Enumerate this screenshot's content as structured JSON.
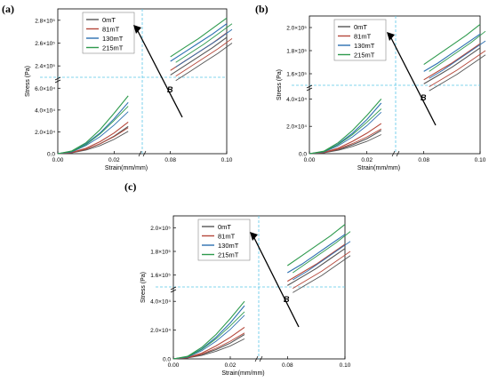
{
  "chart_data": [
    {
      "type": "line",
      "panel_label": "(a)",
      "xlabel": "Strain(mm/mm)",
      "ylabel": "Stress (Pa)",
      "x_ticks": [
        "0.00",
        "0.02",
        "0.08",
        "0.10"
      ],
      "y_ticks_lower": [
        "0.0",
        "2.0×10⁴",
        "4.0×10⁴",
        "6.0×10⁴"
      ],
      "y_ticks_upper": [
        "2.4×10⁵",
        "2.6×10⁵",
        "2.8×10⁵"
      ],
      "x_range_lower": [
        0,
        0.03
      ],
      "x_range_upper": [
        0.07,
        0.1
      ],
      "y_range_lower": [
        0,
        70000
      ],
      "y_range_upper": [
        220000,
        280000
      ],
      "legend_position": "top-left",
      "annotation": "B",
      "series": [
        {
          "name": "0mT",
          "color": "#555555",
          "x_low": [
            0.0,
            0.005,
            0.01,
            0.015,
            0.02,
            0.025
          ],
          "y_low": [
            0,
            1000,
            4000,
            9000,
            16000,
            25000
          ],
          "x_high": [
            0.08,
            0.085,
            0.09,
            0.095,
            0.1
          ],
          "y_high": [
            222000,
            230000,
            238000,
            246000,
            255000
          ]
        },
        {
          "name": "81mT",
          "color": "#b5473a",
          "x_low": [
            0.0,
            0.005,
            0.01,
            0.015,
            0.02,
            0.025
          ],
          "y_low": [
            0,
            1200,
            5000,
            11000,
            19000,
            29000
          ],
          "x_high": [
            0.08,
            0.085,
            0.09,
            0.095,
            0.1
          ],
          "y_high": [
            226000,
            234000,
            242000,
            250000,
            259000
          ]
        },
        {
          "name": "130mT",
          "color": "#2c6fb0",
          "x_low": [
            0.0,
            0.005,
            0.01,
            0.015,
            0.02,
            0.025
          ],
          "y_low": [
            0,
            2000,
            9000,
            19000,
            32000,
            47000
          ],
          "x_high": [
            0.08,
            0.085,
            0.09,
            0.095,
            0.1
          ],
          "y_high": [
            234000,
            242000,
            250000,
            258000,
            267000
          ]
        },
        {
          "name": "215mT",
          "color": "#2e9a4d",
          "x_low": [
            0.0,
            0.005,
            0.01,
            0.015,
            0.02,
            0.025
          ],
          "y_low": [
            0,
            2500,
            10000,
            22000,
            37000,
            53000
          ],
          "x_high": [
            0.08,
            0.085,
            0.09,
            0.095,
            0.1
          ],
          "y_high": [
            238000,
            246000,
            254000,
            263000,
            272000
          ]
        }
      ]
    },
    {
      "type": "line",
      "panel_label": "(b)",
      "xlabel": "Strain(mm/mm)",
      "ylabel": "Stress (Pa)",
      "x_ticks": [
        "0.00",
        "0.02",
        "0.08",
        "0.10"
      ],
      "y_ticks_lower": [
        "0.0",
        "2.0×10⁴",
        "4.0×10⁴"
      ],
      "y_ticks_upper": [
        "1.6×10⁵",
        "1.8×10⁵",
        "2.0×10⁵"
      ],
      "x_range_lower": [
        0,
        0.03
      ],
      "x_range_upper": [
        0.07,
        0.1
      ],
      "y_range_lower": [
        0,
        50000
      ],
      "y_range_upper": [
        150000,
        200000
      ],
      "legend_position": "top-left",
      "annotation": "B",
      "series": [
        {
          "name": "0mT",
          "color": "#555555",
          "x_low": [
            0.0,
            0.005,
            0.01,
            0.015,
            0.02,
            0.025
          ],
          "y_low": [
            0,
            800,
            3000,
            6500,
            11000,
            17000
          ],
          "x_high": [
            0.08,
            0.085,
            0.09,
            0.095,
            0.1
          ],
          "y_high": [
            151000,
            157000,
            163000,
            170000,
            177000
          ]
        },
        {
          "name": "81mT",
          "color": "#b5473a",
          "x_low": [
            0.0,
            0.005,
            0.01,
            0.015,
            0.02,
            0.025
          ],
          "y_low": [
            0,
            1000,
            4000,
            9000,
            15000,
            22000
          ],
          "x_high": [
            0.08,
            0.085,
            0.09,
            0.095,
            0.1
          ],
          "y_high": [
            154000,
            160000,
            166000,
            173000,
            180000
          ]
        },
        {
          "name": "130mT",
          "color": "#2c6fb0",
          "x_low": [
            0.0,
            0.005,
            0.01,
            0.015,
            0.02,
            0.025
          ],
          "y_low": [
            0,
            1500,
            7000,
            15000,
            25000,
            37000
          ],
          "x_high": [
            0.08,
            0.085,
            0.09,
            0.095,
            0.1
          ],
          "y_high": [
            160000,
            166000,
            173000,
            180000,
            187000
          ]
        },
        {
          "name": "215mT",
          "color": "#2e9a4d",
          "x_low": [
            0.0,
            0.005,
            0.01,
            0.015,
            0.02,
            0.025
          ],
          "y_low": [
            0,
            1800,
            8000,
            17000,
            28000,
            40000
          ],
          "x_high": [
            0.08,
            0.085,
            0.09,
            0.095,
            0.1
          ],
          "y_high": [
            165000,
            172000,
            179000,
            186000,
            194000
          ]
        }
      ]
    },
    {
      "type": "line",
      "panel_label": "(c)",
      "xlabel": "Strain(mm/mm)",
      "ylabel": "Stress (Pa)",
      "x_ticks": [
        "0.00",
        "0.02",
        "0.08",
        "0.10"
      ],
      "y_ticks_lower": [
        "0.0",
        "2.0×10⁴",
        "4.0×10⁴"
      ],
      "y_ticks_upper": [
        "1.6×10⁵",
        "1.8×10⁵",
        "2.0×10⁵"
      ],
      "x_range_lower": [
        0,
        0.03
      ],
      "x_range_upper": [
        0.07,
        0.1
      ],
      "y_range_lower": [
        0,
        50000
      ],
      "y_range_upper": [
        150000,
        200000
      ],
      "legend_position": "top-left",
      "annotation": "B",
      "series": [
        {
          "name": "0mT",
          "color": "#555555",
          "x_low": [
            0.0,
            0.005,
            0.01,
            0.015,
            0.02,
            0.025
          ],
          "y_low": [
            0,
            800,
            3000,
            6500,
            11000,
            17000
          ],
          "x_high": [
            0.08,
            0.085,
            0.09,
            0.095,
            0.1
          ],
          "y_high": [
            151000,
            157000,
            163000,
            170000,
            177000
          ]
        },
        {
          "name": "81mT",
          "color": "#b5473a",
          "x_low": [
            0.0,
            0.005,
            0.01,
            0.015,
            0.02,
            0.025
          ],
          "y_low": [
            0,
            1000,
            4000,
            9000,
            15000,
            22000
          ],
          "x_high": [
            0.08,
            0.085,
            0.09,
            0.095,
            0.1
          ],
          "y_high": [
            154000,
            160000,
            166000,
            173000,
            180000
          ]
        },
        {
          "name": "130mT",
          "color": "#2c6fb0",
          "x_low": [
            0.0,
            0.005,
            0.01,
            0.015,
            0.02,
            0.025
          ],
          "y_low": [
            0,
            1500,
            7000,
            15000,
            25000,
            37000
          ],
          "x_high": [
            0.08,
            0.085,
            0.09,
            0.095,
            0.1
          ],
          "y_high": [
            160000,
            166000,
            173000,
            180000,
            187000
          ]
        },
        {
          "name": "215mT",
          "color": "#2e9a4d",
          "x_low": [
            0.0,
            0.005,
            0.01,
            0.015,
            0.02,
            0.025
          ],
          "y_low": [
            0,
            1800,
            8000,
            17000,
            28000,
            40000
          ],
          "x_high": [
            0.08,
            0.085,
            0.09,
            0.095,
            0.1
          ],
          "y_high": [
            165000,
            172000,
            179000,
            186000,
            194000
          ]
        }
      ]
    }
  ]
}
